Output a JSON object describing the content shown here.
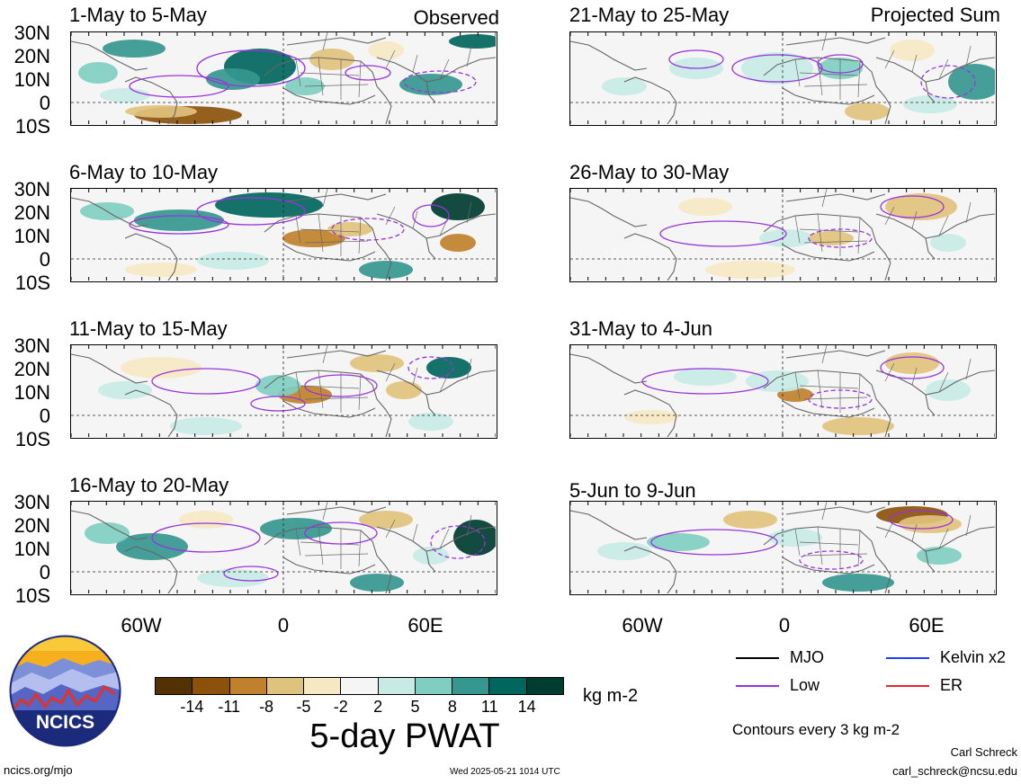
{
  "headings": {
    "left": "Observed",
    "right": "Projected Sum"
  },
  "panels": [
    {
      "title": "1-May to 5-May"
    },
    {
      "title": "21-May to 25-May"
    },
    {
      "title": "6-May to 10-May"
    },
    {
      "title": "26-May to 30-May"
    },
    {
      "title": "11-May to 15-May"
    },
    {
      "title": "31-May to 4-Jun"
    },
    {
      "title": "16-May to 20-May"
    },
    {
      "title": "5-Jun to 9-Jun"
    }
  ],
  "lat_labels": [
    "30N",
    "20N",
    "10N",
    "0",
    "10S"
  ],
  "lon_labels": [
    "60W",
    "0",
    "60E"
  ],
  "colorbar": {
    "ticks": [
      "-14",
      "-11",
      "-8",
      "-5",
      "-2",
      "2",
      "5",
      "8",
      "11",
      "14"
    ],
    "colors": [
      "#543005",
      "#8c510a",
      "#bf812d",
      "#dfc27d",
      "#f6e8c3",
      "#f5f5f5",
      "#c7eae5",
      "#80cdc1",
      "#35978f",
      "#01665e",
      "#003c30"
    ],
    "units": "kg m-2",
    "title": "5-day PWAT"
  },
  "legend": {
    "items": [
      {
        "label": "MJO",
        "color": "#000000"
      },
      {
        "label": "Kelvin x2",
        "color": "#1f3fff"
      },
      {
        "label": "Low",
        "color": "#9933dd"
      },
      {
        "label": "ER",
        "color": "#e8262a"
      }
    ],
    "contour_note": "Contours every 3 kg m-2"
  },
  "logo": {
    "text": "NCICS"
  },
  "footer": {
    "url": "ncics.org/mjo",
    "timestamp": "Wed 2025-05-21 1014 UTC",
    "author": "Carl Schreck",
    "email": "carl_schreck@ncsu.edu"
  }
}
